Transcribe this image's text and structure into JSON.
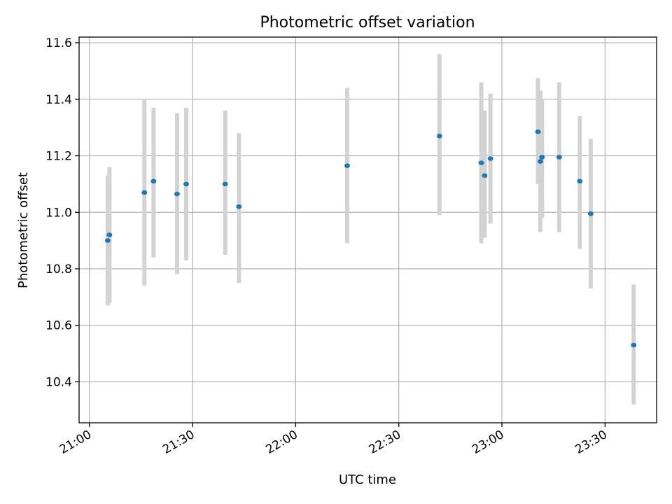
{
  "chart_data": {
    "type": "scatter",
    "title": "Photometric offset variation",
    "xlabel": "UTC time",
    "ylabel": "Photometric offset",
    "xlim": [
      "20:57",
      "23:45"
    ],
    "ylim": [
      10.255,
      11.62
    ],
    "x_ticks": [
      "21:00",
      "21:30",
      "22:00",
      "22:30",
      "23:00",
      "23:30"
    ],
    "y_ticks": [
      10.4,
      10.6,
      10.8,
      11.0,
      11.2,
      11.4,
      11.6
    ],
    "grid": true,
    "legend": "none",
    "colors": {
      "point": "#1f77b4",
      "error_bar": "#d3d3d3",
      "grid": "#b0b0b0"
    },
    "points": [
      {
        "time": "21:05:20",
        "y": 10.9,
        "low": 10.67,
        "high": 11.13
      },
      {
        "time": "21:05:50",
        "y": 10.92,
        "low": 10.68,
        "high": 11.16
      },
      {
        "time": "21:16:00",
        "y": 11.07,
        "low": 10.74,
        "high": 11.4
      },
      {
        "time": "21:18:40",
        "y": 11.11,
        "low": 10.84,
        "high": 11.37
      },
      {
        "time": "21:25:30",
        "y": 11.065,
        "low": 10.78,
        "high": 11.35
      },
      {
        "time": "21:28:10",
        "y": 11.1,
        "low": 10.83,
        "high": 11.37
      },
      {
        "time": "21:39:30",
        "y": 11.1,
        "low": 10.85,
        "high": 11.36
      },
      {
        "time": "21:43:30",
        "y": 11.02,
        "low": 10.75,
        "high": 11.28
      },
      {
        "time": "22:15:00",
        "y": 11.165,
        "low": 10.89,
        "high": 11.44
      },
      {
        "time": "22:41:50",
        "y": 11.27,
        "low": 10.99,
        "high": 11.56
      },
      {
        "time": "22:54:00",
        "y": 11.175,
        "low": 10.89,
        "high": 11.46
      },
      {
        "time": "22:55:00",
        "y": 11.13,
        "low": 10.91,
        "high": 11.36
      },
      {
        "time": "22:56:40",
        "y": 11.19,
        "low": 10.96,
        "high": 11.42
      },
      {
        "time": "23:10:30",
        "y": 11.285,
        "low": 11.1,
        "high": 11.475
      },
      {
        "time": "23:11:10",
        "y": 11.18,
        "low": 10.93,
        "high": 11.43
      },
      {
        "time": "23:11:40",
        "y": 11.195,
        "low": 10.98,
        "high": 11.4
      },
      {
        "time": "23:16:40",
        "y": 11.195,
        "low": 10.93,
        "high": 11.46
      },
      {
        "time": "23:22:40",
        "y": 11.11,
        "low": 10.87,
        "high": 11.34
      },
      {
        "time": "23:25:50",
        "y": 10.995,
        "low": 10.73,
        "high": 11.26
      },
      {
        "time": "23:38:20",
        "y": 10.53,
        "low": 10.32,
        "high": 10.745
      }
    ]
  }
}
